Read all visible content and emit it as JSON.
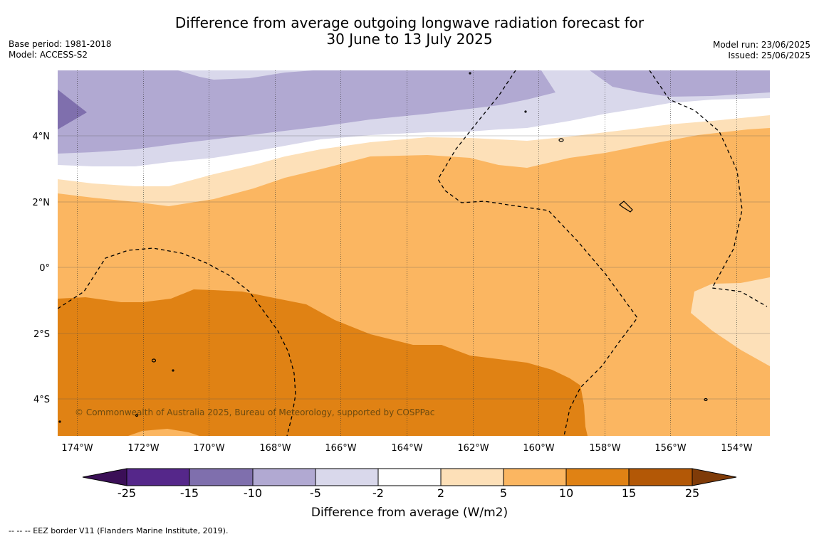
{
  "header": {
    "title_line1": "Difference from average outgoing longwave radiation forecast for",
    "title_line2": "30 June to 13 July 2025",
    "base_period": "Base period: 1981-2018",
    "model": "Model: ACCESS-S2",
    "model_run": "Model run: 23/06/2025",
    "issued": "Issued: 25/06/2025"
  },
  "map": {
    "copyright": "© Commonwealth of Australia 2025, Bureau of Meteorology, supported by COSPPac",
    "lon_labels": [
      "174°W",
      "172°W",
      "170°W",
      "168°W",
      "166°W",
      "164°W",
      "162°W",
      "160°W",
      "158°W",
      "156°W",
      "154°W"
    ],
    "lat_labels": [
      "4°N",
      "2°N",
      "0°",
      "2°S",
      "4°S"
    ]
  },
  "colorbar": {
    "ticks": [
      "-25",
      "-15",
      "-10",
      "-5",
      "-2",
      "2",
      "5",
      "10",
      "15",
      "25"
    ],
    "colors": [
      "#3b0f57",
      "#55278a",
      "#7f6fad",
      "#b1a9d2",
      "#d9d8eb",
      "#ffffff",
      "#fde0b8",
      "#fbb661",
      "#e08214",
      "#b35806",
      "#7f3b08"
    ],
    "title": "Difference from average (W/m2)"
  },
  "footnote": "--  --  -- EEZ border V11 (Flanders Marine Institute, 2019)."
}
